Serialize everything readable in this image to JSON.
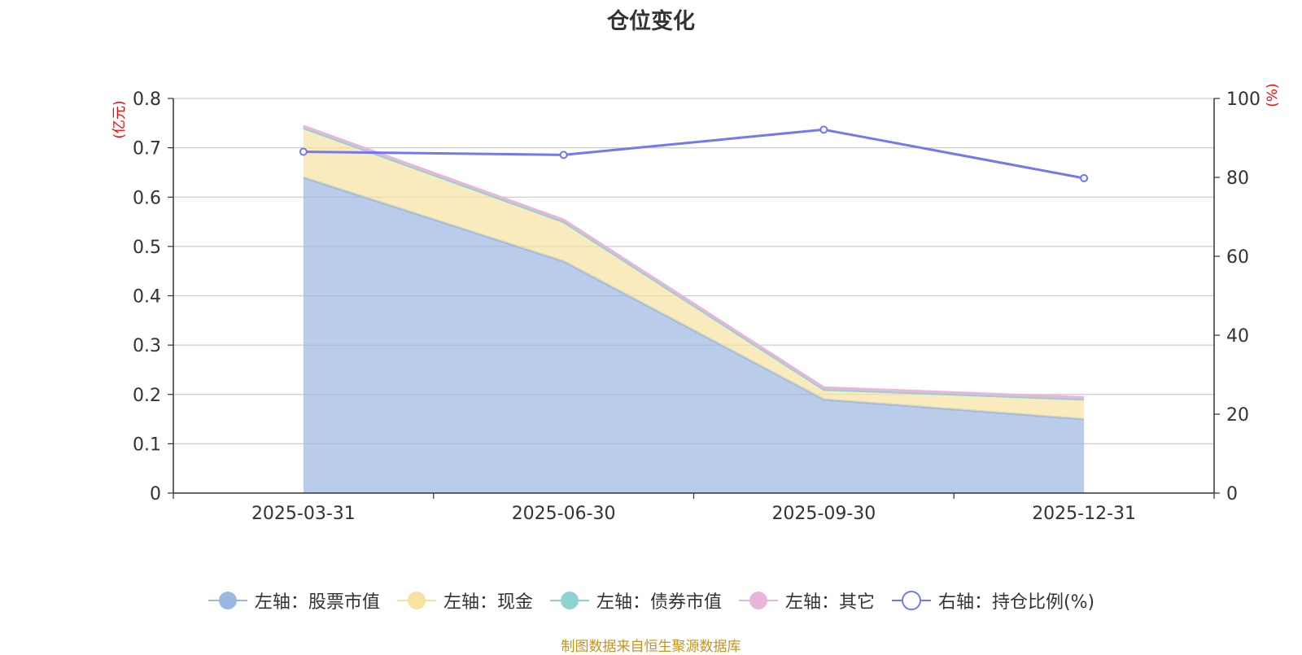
{
  "chart_data": {
    "type": "area",
    "title": "仓位变化",
    "categories": [
      "2025-03-31",
      "2025-06-30",
      "2025-09-30",
      "2025-12-31"
    ],
    "left_axis": {
      "unit": "(亿元)",
      "ylim": [
        0,
        0.8
      ],
      "ticks": [
        "0",
        "0.1",
        "0.2",
        "0.3",
        "0.4",
        "0.5",
        "0.6",
        "0.7",
        "0.8"
      ]
    },
    "right_axis": {
      "unit": "(%)",
      "ylim": [
        0,
        100
      ],
      "ticks": [
        "0",
        "20",
        "40",
        "60",
        "80",
        "100"
      ]
    },
    "series": [
      {
        "name": "左轴：股票市值",
        "axis": "left",
        "kind": "stacked-area",
        "color": "#9bb8e3",
        "values": [
          0.64,
          0.47,
          0.19,
          0.15
        ]
      },
      {
        "name": "左轴：现金",
        "axis": "left",
        "kind": "stacked-area",
        "color": "#f6e3a1",
        "values": [
          0.1,
          0.08,
          0.02,
          0.04
        ]
      },
      {
        "name": "左轴：债券市值",
        "axis": "left",
        "kind": "stacked-area",
        "color": "#8dd3d3",
        "values": [
          0,
          0,
          0,
          0
        ]
      },
      {
        "name": "左轴：其它",
        "axis": "left",
        "kind": "stacked-area",
        "color": "#e8b6d8",
        "values": [
          0.004,
          0.004,
          0.004,
          0.004
        ]
      },
      {
        "name": "右轴：持仓比例(%)",
        "axis": "right",
        "kind": "line",
        "color": "#7478ee",
        "values": [
          86.5,
          85.7,
          92.1,
          79.8
        ]
      }
    ],
    "legend_position": "bottom"
  },
  "footer": {
    "source": "制图数据来自恒生聚源数据库"
  }
}
